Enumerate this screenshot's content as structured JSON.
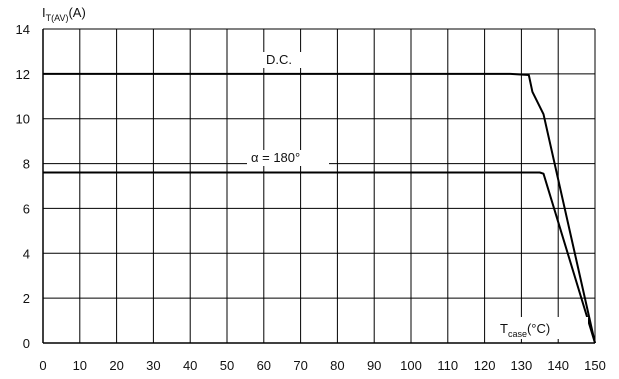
{
  "chart_data": {
    "type": "line",
    "ylabel": {
      "main": "I",
      "sub": "T(AV)",
      "unit": "(A)"
    },
    "xlabel": {
      "main": "T",
      "sub": "case",
      "unit": "(°C)"
    },
    "xlim": [
      0,
      150
    ],
    "ylim": [
      0,
      14
    ],
    "xticks": [
      0,
      10,
      20,
      30,
      40,
      50,
      60,
      70,
      80,
      90,
      100,
      110,
      120,
      130,
      140,
      150
    ],
    "yticks": [
      0,
      2,
      4,
      6,
      8,
      10,
      12,
      14
    ],
    "grid": true,
    "series": [
      {
        "name": "D.C.",
        "x": [
          0,
          127,
          132,
          133,
          136,
          150
        ],
        "y": [
          12,
          12,
          11.95,
          11.2,
          10.2,
          0
        ]
      },
      {
        "name": "α = 180°",
        "x": [
          0,
          135,
          136,
          150
        ],
        "y": [
          7.6,
          7.6,
          7.55,
          0
        ]
      }
    ]
  }
}
